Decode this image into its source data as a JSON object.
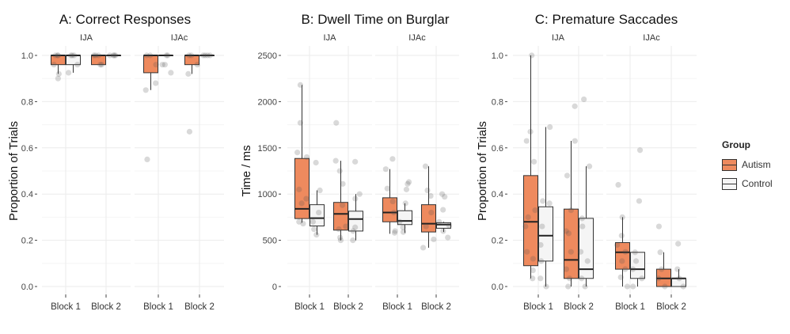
{
  "chart_data": [
    {
      "type": "boxplot",
      "title": "A: Correct Responses",
      "ylabel": "Proportion of Trials",
      "xlabel": "",
      "ylim": [
        0,
        1.0
      ],
      "yticks": [
        0.0,
        0.2,
        0.4,
        0.6,
        0.8,
        1.0
      ],
      "ytick_labels": [
        "0.0",
        "0.2",
        "0.4",
        "0.6",
        "0.8",
        "1.0"
      ],
      "grid": true,
      "facets": [
        {
          "label": "IJA",
          "categories": [
            {
              "label": "Block 1",
              "autism": {
                "q1": 0.96,
                "median": 1.0,
                "q3": 1.0,
                "lo": 0.92,
                "hi": 1.0,
                "points": [
                  0.9,
                  0.92,
                  0.96,
                  1.0,
                  1.0,
                  1.0
                ]
              },
              "control": {
                "q1": 0.96,
                "median": 1.0,
                "q3": 1.0,
                "lo": 0.925,
                "hi": 1.0,
                "points": [
                  0.925,
                  0.96,
                  1.0,
                  1.0,
                  1.0
                ]
              }
            },
            {
              "label": "Block 2",
              "autism": {
                "q1": 0.96,
                "median": 1.0,
                "q3": 1.0,
                "lo": 0.96,
                "hi": 1.0,
                "points": [
                  0.96,
                  0.96,
                  1.0,
                  1.0,
                  1.0
                ]
              },
              "control": {
                "q1": 1.0,
                "median": 1.0,
                "q3": 1.0,
                "lo": 1.0,
                "hi": 1.0,
                "points": [
                  1.0,
                  1.0,
                  1.0,
                  1.0
                ]
              }
            }
          ]
        },
        {
          "label": "IJAc",
          "categories": [
            {
              "label": "Block 1",
              "autism": {
                "q1": 0.925,
                "median": 1.0,
                "q3": 1.0,
                "lo": 0.85,
                "hi": 1.0,
                "points": [
                  0.55,
                  0.85,
                  0.88,
                  0.96,
                  1.0,
                  1.0
                ]
              },
              "control": {
                "q1": 1.0,
                "median": 1.0,
                "q3": 1.0,
                "lo": 1.0,
                "hi": 1.0,
                "points": [
                  0.925,
                  0.96,
                  0.96,
                  1.0,
                  1.0
                ]
              }
            },
            {
              "label": "Block 2",
              "autism": {
                "q1": 0.96,
                "median": 1.0,
                "q3": 1.0,
                "lo": 0.92,
                "hi": 1.0,
                "points": [
                  0.67,
                  0.92,
                  0.96,
                  1.0,
                  1.0
                ]
              },
              "control": {
                "q1": 1.0,
                "median": 1.0,
                "q3": 1.0,
                "lo": 1.0,
                "hi": 1.0,
                "points": [
                  1.0,
                  1.0,
                  1.0,
                  1.0
                ]
              }
            }
          ]
        }
      ]
    },
    {
      "type": "boxplot",
      "title": "B: Dwell Time on Burglar",
      "ylabel": "Time / ms",
      "xlabel": "",
      "ylim": [
        0,
        2500
      ],
      "yticks": [
        0,
        500,
        1000,
        1500,
        2000,
        2500
      ],
      "ytick_labels": [
        "0",
        "500",
        "1000",
        "1500",
        "2000",
        "2500"
      ],
      "grid": true,
      "facets": [
        {
          "label": "IJA",
          "categories": [
            {
              "label": "Block 1",
              "autism": {
                "q1": 735,
                "median": 840,
                "q3": 1385,
                "lo": 690,
                "hi": 2180,
                "points": [
                  2180,
                  1770,
                  1450,
                  1400,
                  1050,
                  950,
                  900,
                  700,
                  680
                ]
              },
              "control": {
                "q1": 655,
                "median": 740,
                "q3": 885,
                "lo": 560,
                "hi": 1040,
                "points": [
                  1340,
                  1040,
                  800,
                  700,
                  620,
                  560
                ]
              }
            },
            {
              "label": "Block 2",
              "autism": {
                "q1": 610,
                "median": 785,
                "q3": 910,
                "lo": 500,
                "hi": 1360,
                "points": [
                  1770,
                  1360,
                  1250,
                  1110,
                  880,
                  650,
                  620,
                  530,
                  500
                ]
              },
              "control": {
                "q1": 600,
                "median": 730,
                "q3": 815,
                "lo": 500,
                "hi": 1000,
                "points": [
                  1350,
                  1000,
                  950,
                  640,
                  600,
                  500
                ]
              }
            }
          ]
        },
        {
          "label": "IJAc",
          "categories": [
            {
              "label": "Block 1",
              "autism": {
                "q1": 700,
                "median": 800,
                "q3": 960,
                "lo": 570,
                "hi": 1270,
                "points": [
                  1380,
                  1270,
                  1060,
                  920,
                  800,
                  600,
                  580
                ]
              },
              "control": {
                "q1": 670,
                "median": 710,
                "q3": 820,
                "lo": 580,
                "hi": 900,
                "points": [
                  1130,
                  1110,
                  1050,
                  900,
                  700,
                  640,
                  590
                ]
              }
            },
            {
              "label": "Block 2",
              "autism": {
                "q1": 590,
                "median": 680,
                "q3": 885,
                "lo": 420,
                "hi": 1300,
                "points": [
                  1300,
                  1040,
                  980,
                  800,
                  650,
                  510,
                  420
                ]
              },
              "control": {
                "q1": 630,
                "median": 670,
                "q3": 690,
                "lo": 590,
                "hi": 700,
                "points": [
                  1000,
                  970,
                  830,
                  700,
                  660,
                  600,
                  530
                ]
              }
            }
          ]
        }
      ]
    },
    {
      "type": "boxplot",
      "title": "C: Premature Saccades",
      "ylabel": "Proportion of Trials",
      "xlabel": "",
      "ylim": [
        0,
        1.0
      ],
      "yticks": [
        0.0,
        0.2,
        0.4,
        0.6,
        0.8,
        1.0
      ],
      "ytick_labels": [
        "0.0",
        "0.2",
        "0.4",
        "0.6",
        "0.8",
        "1.0"
      ],
      "grid": true,
      "facets": [
        {
          "label": "IJA",
          "categories": [
            {
              "label": "Block 1",
              "autism": {
                "q1": 0.09,
                "median": 0.28,
                "q3": 0.48,
                "lo": 0.035,
                "hi": 1.0,
                "points": [
                  1.0,
                  0.67,
                  0.63,
                  0.54,
                  0.33,
                  0.3,
                  0.26,
                  0.15,
                  0.12,
                  0.07,
                  0.035
                ]
              },
              "control": {
                "q1": 0.11,
                "median": 0.22,
                "q3": 0.345,
                "lo": 0.0,
                "hi": 0.69,
                "points": [
                  0.69,
                  0.37,
                  0.36,
                  0.26,
                  0.18,
                  0.11,
                  0.035,
                  0.0
                ]
              }
            },
            {
              "label": "Block 2",
              "autism": {
                "q1": 0.035,
                "median": 0.115,
                "q3": 0.335,
                "lo": 0.0,
                "hi": 0.63,
                "points": [
                  0.78,
                  0.63,
                  0.48,
                  0.33,
                  0.24,
                  0.23,
                  0.15,
                  0.075,
                  0.035,
                  0.0
                ]
              },
              "control": {
                "q1": 0.035,
                "median": 0.075,
                "q3": 0.295,
                "lo": 0.0,
                "hi": 0.52,
                "points": [
                  0.81,
                  0.52,
                  0.295,
                  0.26,
                  0.15,
                  0.11,
                  0.035,
                  0.0
                ]
              }
            }
          ]
        },
        {
          "label": "IJAc",
          "categories": [
            {
              "label": "Block 1",
              "autism": {
                "q1": 0.075,
                "median": 0.148,
                "q3": 0.19,
                "lo": 0.0,
                "hi": 0.3,
                "points": [
                  0.44,
                  0.3,
                  0.22,
                  0.18,
                  0.15,
                  0.11,
                  0.075,
                  0.04,
                  0.0
                ]
              },
              "control": {
                "q1": 0.035,
                "median": 0.075,
                "q3": 0.148,
                "lo": 0.0,
                "hi": 0.148,
                "points": [
                  0.59,
                  0.37,
                  0.148,
                  0.11,
                  0.075,
                  0.035,
                  0.0
                ]
              }
            },
            {
              "label": "Block 2",
              "autism": {
                "q1": 0.0,
                "median": 0.035,
                "q3": 0.075,
                "lo": 0.0,
                "hi": 0.148,
                "points": [
                  0.26,
                  0.148,
                  0.075,
                  0.035,
                  0.0
                ]
              },
              "control": {
                "q1": 0.0,
                "median": 0.035,
                "q3": 0.035,
                "lo": 0.0,
                "hi": 0.075,
                "points": [
                  0.185,
                  0.075,
                  0.035,
                  0.0
                ]
              }
            }
          ]
        }
      ]
    }
  ],
  "legend": {
    "title": "Group",
    "position": "right",
    "items": [
      {
        "label": "Autism",
        "color": "#EE8A5E"
      },
      {
        "label": "Control",
        "color": "#F5F5F5"
      }
    ]
  }
}
